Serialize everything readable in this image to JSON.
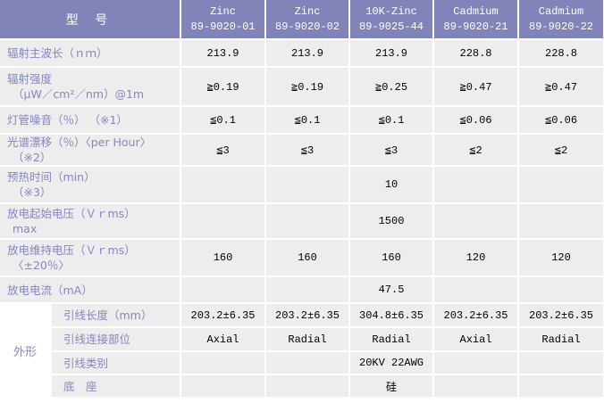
{
  "header": {
    "model_label": "型 号",
    "columns": [
      [
        "Zinc",
        "89-9020-01"
      ],
      [
        "Zinc",
        "89-9020-02"
      ],
      [
        "10K-Zinc",
        "89-9025-44"
      ],
      [
        "Cadmium",
        "89-9020-21"
      ],
      [
        "Cadmium",
        "89-9020-22"
      ]
    ]
  },
  "spec_rows": [
    {
      "label": [
        "辐射主波长（ｎｍ）"
      ],
      "values": [
        "213.9",
        "213.9",
        "213.9",
        "228.8",
        "228.8"
      ]
    },
    {
      "label": [
        "辐射强度",
        "（μW／cm²／nm）@1m"
      ],
      "values": [
        "≧0.19",
        "≧0.19",
        "≧0.25",
        "≧0.47",
        "≧0.47"
      ]
    },
    {
      "label": [
        "灯管噪音（％） （※1）"
      ],
      "values": [
        "≦0.1",
        "≦0.1",
        "≦0.1",
        "≦0.06",
        "≦0.06"
      ]
    },
    {
      "label": [
        "光谱漂移（％）〈per Hour〉",
        "（※2）"
      ],
      "values": [
        "≦3",
        "≦3",
        "≦3",
        "≦2",
        "≦2"
      ]
    },
    {
      "label": [
        "预热时间（min）",
        "（※3）"
      ],
      "values": [
        "",
        "",
        "10",
        "",
        ""
      ]
    },
    {
      "label": [
        "放电起始电压（Ｖｒms）",
        "max"
      ],
      "values": [
        "",
        "",
        "1500",
        "",
        ""
      ]
    },
    {
      "label": [
        "放电维持电压（Ｖｒms）",
        "〈±20％〉"
      ],
      "values": [
        "160",
        "160",
        "160",
        "120",
        "120"
      ]
    },
    {
      "label": [
        "放电电流（mA）"
      ],
      "values": [
        "",
        "",
        "47.5",
        "",
        ""
      ]
    }
  ],
  "outline_group": {
    "label": "外形",
    "rows": [
      {
        "label": [
          "引线长度（mm）"
        ],
        "values": [
          "203.2±6.35",
          "203.2±6.35",
          "304.8±6.35",
          "203.2±6.35",
          "203.2±6.35"
        ]
      },
      {
        "label": [
          "引线连接部位"
        ],
        "values": [
          "Axial",
          "Radial",
          "Radial",
          "Axial",
          "Radial"
        ]
      },
      {
        "label": [
          "引线类别"
        ],
        "values": [
          "",
          "",
          "20KV 22AWG",
          "",
          ""
        ]
      },
      {
        "label": [
          "底　座"
        ],
        "values": [
          "",
          "",
          "硅",
          "",
          ""
        ]
      }
    ]
  },
  "colors": {
    "header_bg": "#8183b9",
    "row_bg": "#ededed",
    "label_text": "#8486c0",
    "separator": "#ffffff",
    "value_text": "#000000"
  }
}
